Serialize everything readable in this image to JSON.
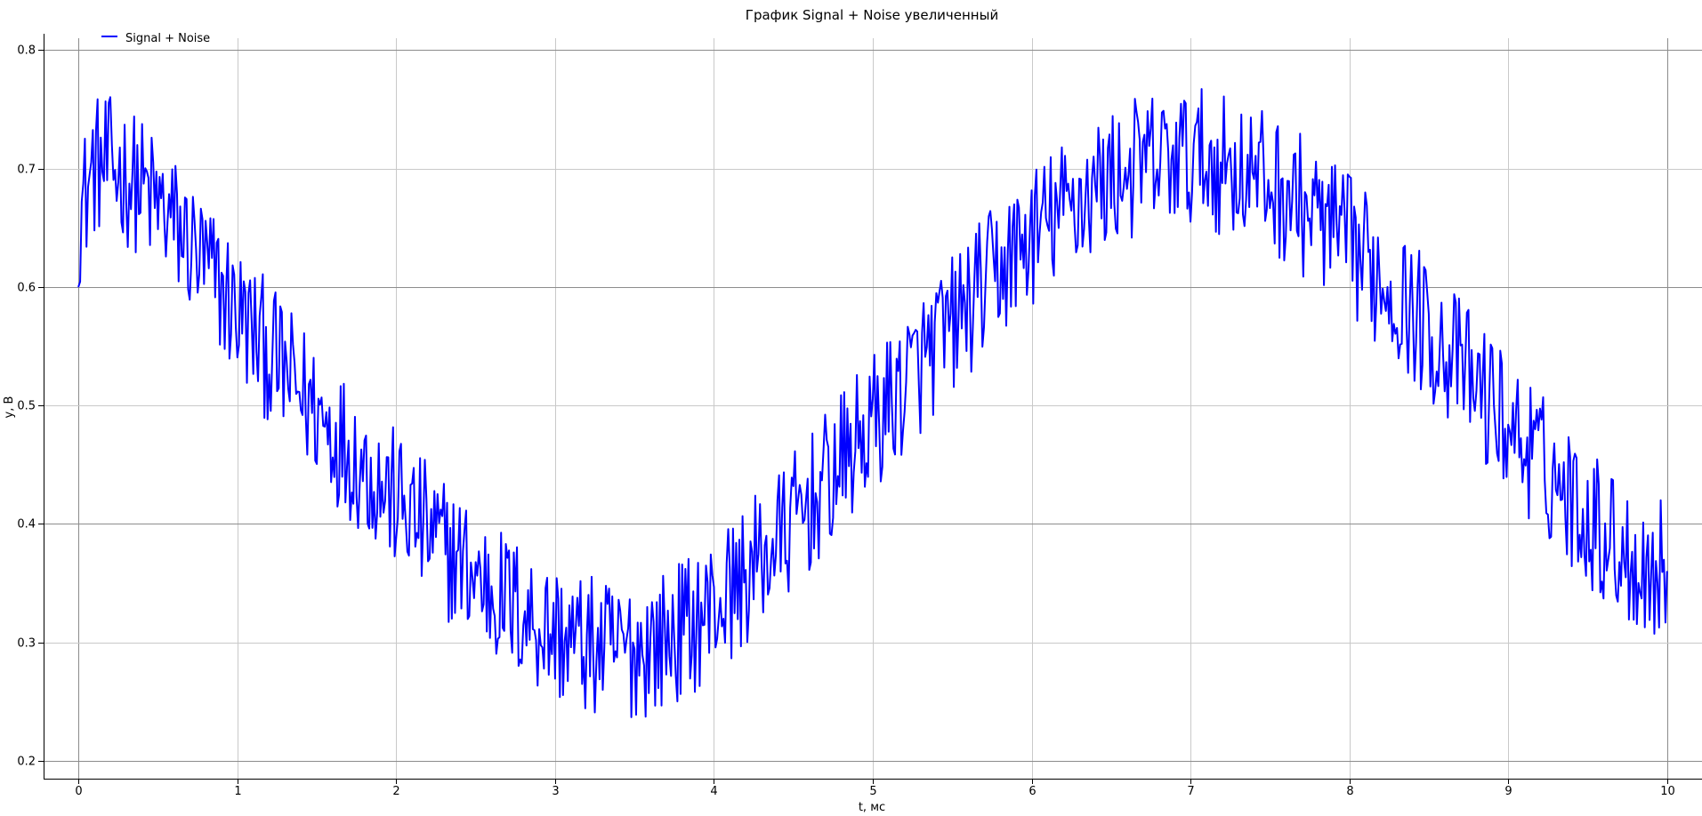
{
  "chart_data": {
    "type": "line",
    "title": "График Signal + Noise увеличенный",
    "xlabel": "t, мс",
    "ylabel": "y, В",
    "xlim": [
      -0.22,
      10.22
    ],
    "ylim": [
      0.185,
      0.81
    ],
    "x_ticks": [
      0,
      1,
      2,
      3,
      4,
      5,
      6,
      7,
      8,
      9,
      10
    ],
    "x_tick_labels": [
      "0",
      "1",
      "2",
      "3",
      "4",
      "5",
      "6",
      "7",
      "8",
      "9",
      "10"
    ],
    "y_ticks": [
      0.2,
      0.3,
      0.4,
      0.5,
      0.6,
      0.7,
      0.8
    ],
    "y_tick_labels": [
      "0.2",
      "0.3",
      "0.4",
      "0.5",
      "0.6",
      "0.7",
      "0.8"
    ],
    "grid": true,
    "legend_position": "top-left",
    "series": [
      {
        "name": "Signal + Noise",
        "color": "#0000ff",
        "x": [
          0,
          0.1,
          0.2,
          0.3,
          0.4,
          0.5,
          0.6,
          0.7,
          0.8,
          0.9,
          1.0,
          1.1,
          1.2,
          1.3,
          1.4,
          1.5,
          1.6,
          1.7,
          1.8,
          1.9,
          2.0,
          2.1,
          2.2,
          2.3,
          2.4,
          2.5,
          2.6,
          2.7,
          2.8,
          2.9,
          3.0,
          3.1,
          3.2,
          3.3,
          3.4,
          3.5,
          3.6,
          3.7,
          3.8,
          3.9,
          4.0,
          4.1,
          4.2,
          4.3,
          4.4,
          4.5,
          4.6,
          4.7,
          4.8,
          4.9,
          5.0,
          5.1,
          5.2,
          5.3,
          5.4,
          5.5,
          5.6,
          5.7,
          5.8,
          5.9,
          6.0,
          6.1,
          6.2,
          6.3,
          6.4,
          6.5,
          6.6,
          6.7,
          6.8,
          6.9,
          7.0,
          7.1,
          7.2,
          7.3,
          7.4,
          7.5,
          7.6,
          7.7,
          7.8,
          7.9,
          8.0,
          8.1,
          8.2,
          8.3,
          8.4,
          8.5,
          8.6,
          8.7,
          8.8,
          8.9,
          9.0,
          9.1,
          9.2,
          9.3,
          9.4,
          9.5,
          9.6,
          9.7,
          9.8,
          9.9,
          10.0
        ],
        "y": [
          0.658,
          0.703,
          0.701,
          0.694,
          0.683,
          0.669,
          0.653,
          0.635,
          0.616,
          0.598,
          0.579,
          0.561,
          0.544,
          0.527,
          0.511,
          0.495,
          0.479,
          0.464,
          0.449,
          0.434,
          0.42,
          0.406,
          0.393,
          0.38,
          0.368,
          0.356,
          0.345,
          0.335,
          0.325,
          0.316,
          0.308,
          0.302,
          0.297,
          0.294,
          0.293,
          0.294,
          0.298,
          0.303,
          0.311,
          0.32,
          0.331,
          0.343,
          0.356,
          0.37,
          0.385,
          0.401,
          0.417,
          0.433,
          0.45,
          0.467,
          0.484,
          0.501,
          0.518,
          0.535,
          0.552,
          0.568,
          0.584,
          0.6,
          0.615,
          0.629,
          0.642,
          0.654,
          0.665,
          0.675,
          0.684,
          0.692,
          0.698,
          0.703,
          0.706,
          0.708,
          0.708,
          0.707,
          0.704,
          0.7,
          0.694,
          0.687,
          0.679,
          0.669,
          0.659,
          0.647,
          0.635,
          0.622,
          0.608,
          0.594,
          0.579,
          0.564,
          0.548,
          0.532,
          0.516,
          0.5,
          0.484,
          0.468,
          0.452,
          0.437,
          0.422,
          0.408,
          0.394,
          0.381,
          0.369,
          0.358,
          0.368
        ],
        "noise_amplitude": 0.06,
        "samples": 1000,
        "noise_seed": 12345
      }
    ]
  }
}
